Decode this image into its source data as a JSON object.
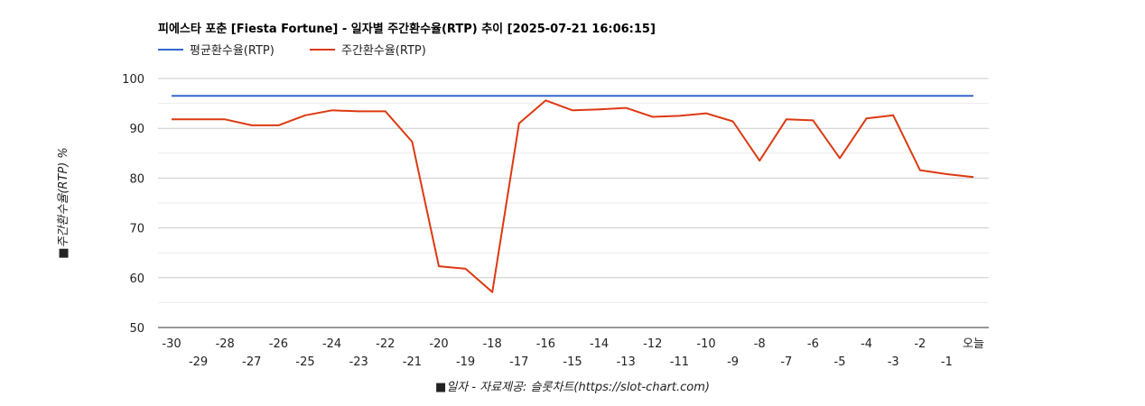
{
  "chart_data": {
    "type": "line",
    "title": "피에스타 포춘 [Fiesta Fortune] - 일자별 주간환수율(RTP) 추이 [2025-07-21 16:06:15]",
    "xlabel": "■일자 - 자료제공: 슬롯차트(https://slot-chart.com)",
    "ylabel": "■주간환수율(RTP) %",
    "ylim": [
      50,
      100
    ],
    "yticks": [
      "100",
      "90",
      "80",
      "70",
      "60",
      "50"
    ],
    "x": [
      "-30",
      "-29",
      "-28",
      "-27",
      "-26",
      "-25",
      "-24",
      "-23",
      "-22",
      "-21",
      "-20",
      "-19",
      "-18",
      "-17",
      "-16",
      "-15",
      "-14",
      "-13",
      "-12",
      "-11",
      "-10",
      "-9",
      "-8",
      "-7",
      "-6",
      "-5",
      "-4",
      "-3",
      "-2",
      "-1",
      "오늘"
    ],
    "legend_position": "top-left",
    "grid": true,
    "series": [
      {
        "name": "평균환수율(RTP)",
        "color": "#3366cc",
        "values": [
          96.5,
          96.5,
          96.5,
          96.5,
          96.5,
          96.5,
          96.5,
          96.5,
          96.5,
          96.5,
          96.5,
          96.5,
          96.5,
          96.5,
          96.5,
          96.5,
          96.5,
          96.5,
          96.5,
          96.5,
          96.5,
          96.5,
          96.5,
          96.5,
          96.5,
          96.5,
          96.5,
          96.5,
          96.5,
          96.5,
          96.5
        ]
      },
      {
        "name": "주간환수율(RTP)",
        "color": "#dc3912",
        "values": [
          91.8,
          91.8,
          91.8,
          90.6,
          90.6,
          92.6,
          93.6,
          93.4,
          93.4,
          87.3,
          62.3,
          61.8,
          57.1,
          91.0,
          95.6,
          93.6,
          93.8,
          94.1,
          92.3,
          92.5,
          93.0,
          91.4,
          83.5,
          91.8,
          91.6,
          84.0,
          92.0,
          92.6,
          81.6,
          80.8,
          80.2
        ]
      }
    ]
  }
}
